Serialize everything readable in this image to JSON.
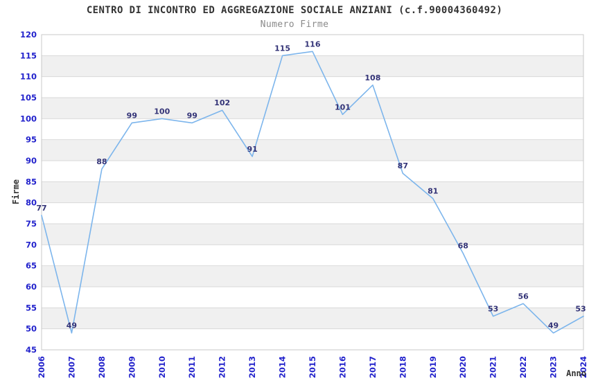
{
  "header": {
    "title": "CENTRO DI INCONTRO ED AGGREGAZIONE SOCIALE ANZIANI (c.f.90004360492)",
    "subtitle": "Numero Firme"
  },
  "chart_data": {
    "type": "line",
    "title": "CENTRO DI INCONTRO ED AGGREGAZIONE SOCIALE ANZIANI (c.f.90004360492)",
    "subtitle": "Numero Firme",
    "xlabel": "Anno",
    "ylabel": "Firme",
    "categories": [
      "2006",
      "2007",
      "2008",
      "2009",
      "2010",
      "2011",
      "2012",
      "2013",
      "2014",
      "2015",
      "2016",
      "2017",
      "2018",
      "2019",
      "2020",
      "2021",
      "2022",
      "2023",
      "2024"
    ],
    "series": [
      {
        "name": "Numero Firme",
        "values": [
          77,
          49,
          88,
          99,
          100,
          99,
          102,
          91,
          115,
          116,
          101,
          108,
          87,
          81,
          68,
          53,
          56,
          49,
          53
        ]
      }
    ],
    "ylim": [
      45,
      120
    ],
    "ytick_step": 5,
    "grid": "horizontal",
    "alternating_bands": true,
    "legend": "none",
    "colors": {
      "line": "#7cb5ec",
      "tick_label": "#2323cc",
      "data_label": "#333377",
      "band": "#f0f0f0",
      "grid": "#d9d9d9",
      "border": "#c9c9c9",
      "title": "#333333",
      "subtitle": "#8a8a8a",
      "axis_title": "#333333",
      "background": "#ffffff"
    }
  }
}
